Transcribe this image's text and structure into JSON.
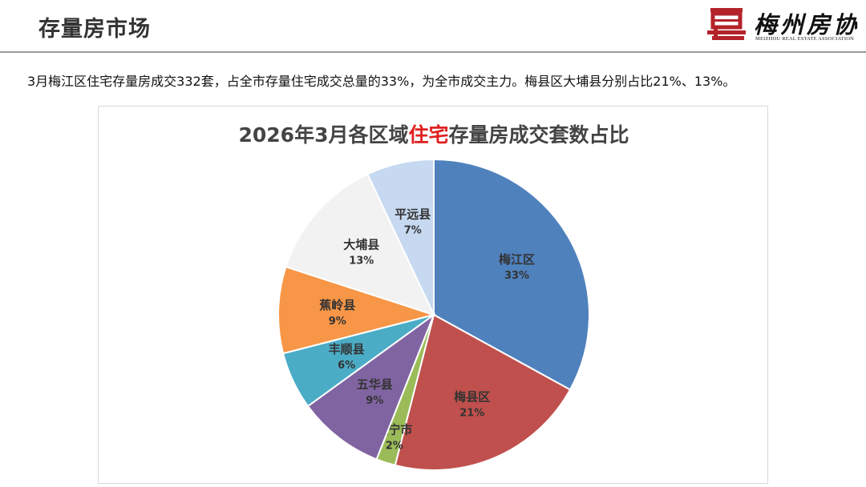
{
  "header": {
    "title": "存量房市场",
    "logo_mark": "昆",
    "logo_name": "梅州房协",
    "logo_sub": "MEIZHOU REAL ESTATE ASSOCIATION"
  },
  "summary": "3月梅江区住宅存量房成交332套，占全市存量住宅成交总量的33%，为全市成交主力。梅县区大埔县分别占比21%、13%。",
  "colors": {
    "brand_red": "#b4232a",
    "title_highlight": "#e02020"
  },
  "chart_data": {
    "type": "pie",
    "title_parts": [
      "2026年3月各区域",
      "住宅",
      "存量房成交套数占比"
    ],
    "slices": [
      {
        "label": "梅江区",
        "value": 33,
        "value_label": "33%",
        "color": "#4f81bd"
      },
      {
        "label": "梅县区",
        "value": 21,
        "value_label": "21%",
        "color": "#c0504d"
      },
      {
        "label": "兴宁市",
        "value": 2,
        "value_label": "2%",
        "color": "#9bbb59"
      },
      {
        "label": "五华县",
        "value": 9,
        "value_label": "9%",
        "color": "#8064a2"
      },
      {
        "label": "丰顺县",
        "value": 6,
        "value_label": "6%",
        "color": "#4bacc6"
      },
      {
        "label": "蕉岭县",
        "value": 9,
        "value_label": "9%",
        "color": "#f79646"
      },
      {
        "label": "大埔县",
        "value": 13,
        "value_label": "13%",
        "color": "#f2f2f2"
      },
      {
        "label": "平远县",
        "value": 7,
        "value_label": "7%",
        "color": "#c6d9f1"
      }
    ]
  }
}
